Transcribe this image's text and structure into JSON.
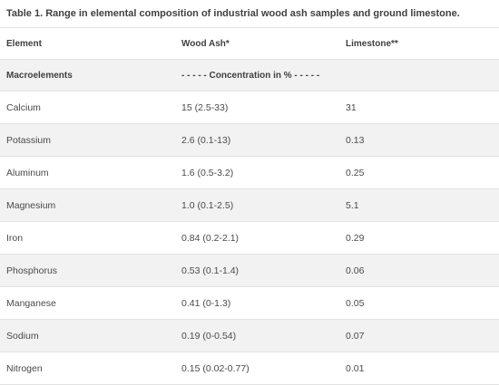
{
  "caption": "Table 1. Range in elemental composition of industrial wood ash samples and ground limestone.",
  "columns": [
    "Element",
    "Wood Ash*",
    "Limestone**"
  ],
  "subheader": {
    "label": "Macroelements",
    "note": "- - - - - Concentration in % - - - - -"
  },
  "rows": [
    {
      "element": "Calcium",
      "wood_ash": "15 (2.5-33)",
      "limestone": "31"
    },
    {
      "element": "Potassium",
      "wood_ash": "2.6 (0.1-13)",
      "limestone": "0.13"
    },
    {
      "element": "Aluminum",
      "wood_ash": "1.6 (0.5-3.2)",
      "limestone": "0.25"
    },
    {
      "element": "Magnesium",
      "wood_ash": "1.0 (0.1-2.5)",
      "limestone": "5.1"
    },
    {
      "element": "Iron",
      "wood_ash": "0.84 (0.2-2.1)",
      "limestone": "0.29"
    },
    {
      "element": "Phosphorus",
      "wood_ash": "0.53 (0.1-1.4)",
      "limestone": "0.06"
    },
    {
      "element": "Manganese",
      "wood_ash": "0.41 (0-1.3)",
      "limestone": "0.05"
    },
    {
      "element": "Sodium",
      "wood_ash": "0.19 (0-0.54)",
      "limestone": "0.07"
    },
    {
      "element": "Nitrogen",
      "wood_ash": "0.15 (0.02-0.77)",
      "limestone": "0.01"
    }
  ]
}
